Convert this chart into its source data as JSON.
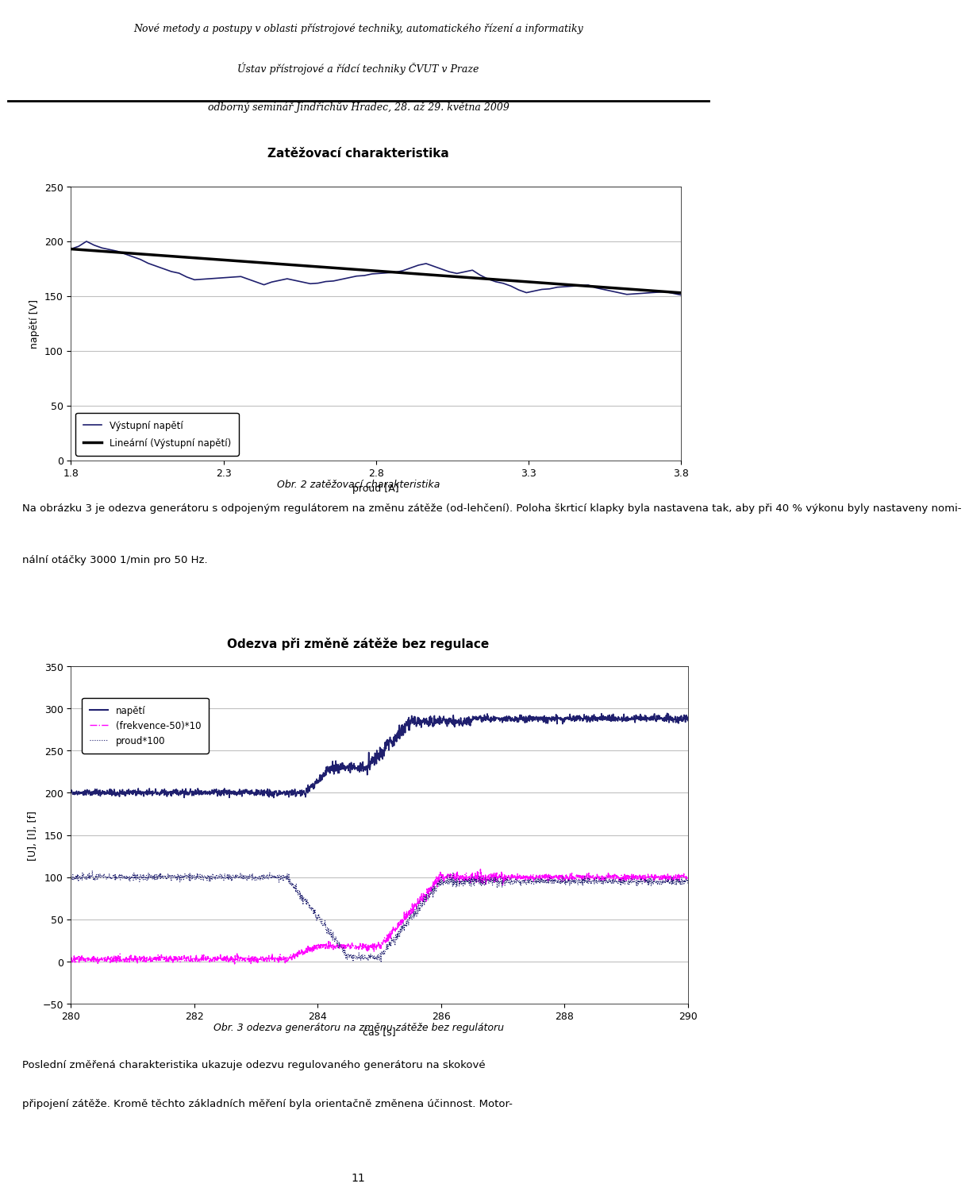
{
  "header_lines": [
    "Nové metody a postupy v oblasti přístrojové techniky, automatického řízení a informatiky",
    "Ústav přístrojové a řídcí techniky ČVUT v Praze",
    "odborný seminář Jindřichův Hradec, 28. až 29. května 2009"
  ],
  "chart1_title": "Zatěžovací charakteristika",
  "chart1_ylabel": "napětí [V]",
  "chart1_xlabel": "proud [A]",
  "chart1_xticks": [
    1.8,
    2.3,
    2.8,
    3.3,
    3.8
  ],
  "chart1_yticks": [
    0,
    50,
    100,
    150,
    200,
    250
  ],
  "chart1_xlim": [
    1.8,
    3.8
  ],
  "chart1_ylim": [
    0,
    250
  ],
  "chart1_caption": "Obr. 2 zatěžovací charakteristika",
  "chart1_legend": [
    "Výstupní napětí",
    "Lineární (Výstupní napětí)"
  ],
  "text_block1": "Na obrázku 3 je odezva generátoru s odpojeným regulátorem na změnu zátěže (od-lehčení). Poloha škrticí klapky byla nastavena tak, aby při 40 % výkonu byly nastaveny nomi-nální otáčky 3000 1/min pro 50 Hz.",
  "chart2_title": "Odezva při změně zátěže bez regulace",
  "chart2_ylabel": "[U], [I], [f]",
  "chart2_xlabel": "čas [s]",
  "chart2_xticks": [
    280,
    282,
    284,
    286,
    288,
    290
  ],
  "chart2_yticks": [
    -50,
    0,
    50,
    100,
    150,
    200,
    250,
    300,
    350
  ],
  "chart2_xlim": [
    280,
    290
  ],
  "chart2_ylim": [
    -50,
    350
  ],
  "chart2_caption": "Obr. 3 odezva generátoru na změnu zátěže bez regulátoru",
  "chart2_legend": [
    "napětí",
    "(frekvence-50)*10",
    "proud*100"
  ],
  "text_block2": "Poslední změřená charakteristika ukazuje odezvu regulovaného generátoru na skokové připojení zátěže. Kromě těchto základních měření byla orientačně změnena účinnost. Motor-",
  "page_number": "11",
  "dark_blue": "#1F1F6E",
  "black": "#000000",
  "magenta": "#FF00FF",
  "bg_color": "#FFFFFF",
  "grid_color": "#C0C0C0"
}
